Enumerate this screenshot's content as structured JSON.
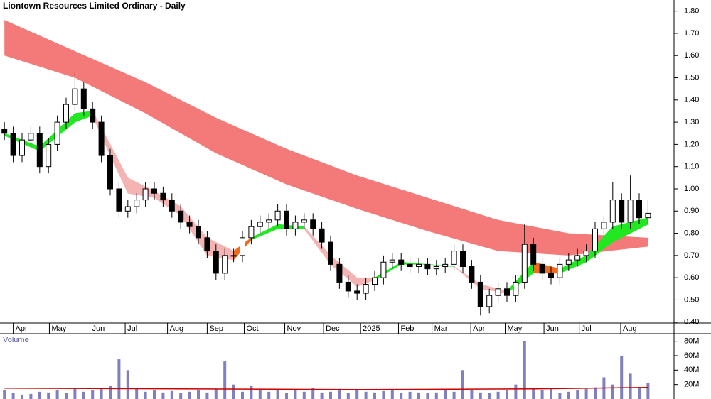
{
  "chart_data": {
    "type": "candlestick",
    "title": "Liontown Resources Limited Ordinary - Daily",
    "x": [
      0,
      1,
      2,
      3,
      4,
      5,
      6,
      7,
      8,
      9,
      10,
      11,
      12,
      13,
      14,
      15,
      16,
      17,
      18,
      19,
      20,
      21,
      22,
      23,
      24,
      25,
      26,
      27,
      28,
      29,
      30,
      31,
      32,
      33,
      34,
      35,
      36,
      37,
      38,
      39,
      40,
      41,
      42,
      43,
      44,
      45,
      46,
      47,
      48,
      49,
      50,
      51,
      52,
      53,
      54,
      55,
      56,
      57,
      58,
      59,
      60,
      61,
      62,
      63,
      64,
      65,
      66,
      67,
      68,
      69,
      70,
      71,
      72,
      73
    ],
    "open": [
      1.27,
      1.25,
      1.15,
      1.22,
      1.25,
      1.1,
      1.2,
      1.3,
      1.38,
      1.45,
      1.36,
      1.3,
      1.15,
      1.0,
      0.9,
      0.92,
      0.95,
      1.0,
      0.98,
      0.95,
      0.9,
      0.85,
      0.83,
      0.78,
      0.72,
      0.62,
      0.7,
      0.7,
      0.78,
      0.83,
      0.85,
      0.86,
      0.9,
      0.82,
      0.85,
      0.86,
      0.82,
      0.76,
      0.66,
      0.58,
      0.54,
      0.53,
      0.57,
      0.6,
      0.67,
      0.68,
      0.66,
      0.65,
      0.66,
      0.64,
      0.65,
      0.66,
      0.72,
      0.65,
      0.58,
      0.47,
      0.52,
      0.55,
      0.52,
      0.58,
      0.75,
      0.66,
      0.62,
      0.6,
      0.66,
      0.68,
      0.7,
      0.72,
      0.82,
      0.85,
      0.95,
      0.85,
      0.95,
      0.87
    ],
    "high": [
      1.3,
      1.28,
      1.25,
      1.28,
      1.28,
      1.23,
      1.33,
      1.41,
      1.53,
      1.48,
      1.39,
      1.33,
      1.18,
      1.03,
      0.95,
      0.98,
      1.03,
      1.03,
      1.01,
      0.98,
      0.93,
      0.88,
      0.86,
      0.81,
      0.75,
      0.73,
      0.73,
      0.81,
      0.86,
      0.88,
      0.89,
      0.93,
      0.93,
      0.88,
      0.89,
      0.89,
      0.85,
      0.79,
      0.69,
      0.61,
      0.57,
      0.6,
      0.63,
      0.7,
      0.71,
      0.71,
      0.69,
      0.69,
      0.69,
      0.68,
      0.69,
      0.75,
      0.75,
      0.68,
      0.61,
      0.55,
      0.58,
      0.58,
      0.61,
      0.84,
      0.78,
      0.69,
      0.65,
      0.69,
      0.71,
      0.73,
      0.75,
      0.85,
      0.88,
      1.03,
      0.98,
      1.06,
      0.98,
      0.95
    ],
    "low": [
      1.22,
      1.12,
      1.12,
      1.19,
      1.07,
      1.07,
      1.17,
      1.27,
      1.35,
      1.33,
      1.27,
      1.12,
      0.97,
      0.87,
      0.87,
      0.89,
      0.92,
      0.95,
      0.92,
      0.87,
      0.82,
      0.8,
      0.75,
      0.69,
      0.59,
      0.59,
      0.67,
      0.67,
      0.75,
      0.8,
      0.82,
      0.83,
      0.79,
      0.79,
      0.82,
      0.79,
      0.73,
      0.63,
      0.55,
      0.51,
      0.5,
      0.5,
      0.54,
      0.57,
      0.64,
      0.63,
      0.62,
      0.62,
      0.61,
      0.61,
      0.62,
      0.63,
      0.62,
      0.55,
      0.43,
      0.44,
      0.49,
      0.49,
      0.49,
      0.55,
      0.63,
      0.59,
      0.57,
      0.57,
      0.63,
      0.65,
      0.67,
      0.69,
      0.79,
      0.82,
      0.82,
      0.82,
      0.84,
      0.84
    ],
    "close": [
      1.25,
      1.15,
      1.22,
      1.25,
      1.1,
      1.2,
      1.3,
      1.38,
      1.45,
      1.36,
      1.3,
      1.15,
      1.0,
      0.9,
      0.92,
      0.95,
      1.0,
      0.98,
      0.95,
      0.9,
      0.85,
      0.83,
      0.78,
      0.72,
      0.62,
      0.7,
      0.7,
      0.78,
      0.83,
      0.85,
      0.86,
      0.9,
      0.82,
      0.85,
      0.86,
      0.82,
      0.76,
      0.66,
      0.58,
      0.54,
      0.53,
      0.57,
      0.6,
      0.67,
      0.68,
      0.66,
      0.65,
      0.66,
      0.64,
      0.65,
      0.66,
      0.72,
      0.65,
      0.58,
      0.47,
      0.52,
      0.55,
      0.52,
      0.58,
      0.75,
      0.66,
      0.62,
      0.6,
      0.66,
      0.68,
      0.7,
      0.72,
      0.82,
      0.85,
      0.95,
      0.85,
      0.95,
      0.87,
      0.89
    ],
    "up_color": "#ffffff",
    "down_color": "#000000",
    "xlim": [
      -0.5,
      74.5
    ],
    "ylim": [
      0.38,
      1.85
    ],
    "xticks": [
      {
        "value": 1.0,
        "label": "Apr"
      },
      {
        "value": 5.1,
        "label": "May"
      },
      {
        "value": 9.7,
        "label": "Jun"
      },
      {
        "value": 13.7,
        "label": "Jul"
      },
      {
        "value": 18.5,
        "label": "Aug"
      },
      {
        "value": 23.0,
        "label": "Sep"
      },
      {
        "value": 27.2,
        "label": "Oct"
      },
      {
        "value": 31.8,
        "label": "Nov"
      },
      {
        "value": 36.2,
        "label": "Dec"
      },
      {
        "value": 40.4,
        "label": "2025"
      },
      {
        "value": 44.7,
        "label": "Feb"
      },
      {
        "value": 48.5,
        "label": "Mar"
      },
      {
        "value": 52.9,
        "label": "Apr"
      },
      {
        "value": 56.8,
        "label": "May"
      },
      {
        "value": 61.2,
        "label": "Jun"
      },
      {
        "value": 65.2,
        "label": "Jul"
      },
      {
        "value": 69.9,
        "label": "Aug"
      }
    ],
    "yticks": [
      {
        "value": 0.4,
        "label": "0.40"
      },
      {
        "value": 0.5,
        "label": "0.50"
      },
      {
        "value": 0.6,
        "label": "0.60"
      },
      {
        "value": 0.7,
        "label": "0.70"
      },
      {
        "value": 0.8,
        "label": "0.80"
      },
      {
        "value": 0.9,
        "label": "0.90"
      },
      {
        "value": 1.0,
        "label": "1.00"
      },
      {
        "value": 1.1,
        "label": "1.10"
      },
      {
        "value": 1.2,
        "label": "1.20"
      },
      {
        "value": 1.3,
        "label": "1.30"
      },
      {
        "value": 1.4,
        "label": "1.40"
      },
      {
        "value": 1.5,
        "label": "1.50"
      },
      {
        "value": 1.6,
        "label": "1.60"
      },
      {
        "value": 1.7,
        "label": "1.70"
      },
      {
        "value": 1.8,
        "label": "1.80"
      }
    ],
    "long_band": {
      "color": "#f47a7a",
      "x": [
        0,
        8,
        16,
        24,
        32,
        40,
        48,
        56,
        64,
        73
      ],
      "upper": [
        1.76,
        1.62,
        1.48,
        1.32,
        1.18,
        1.06,
        0.96,
        0.86,
        0.8,
        0.78
      ],
      "lower": [
        1.6,
        1.5,
        1.34,
        1.16,
        1.02,
        0.91,
        0.81,
        0.72,
        0.7,
        0.74
      ]
    },
    "short_band": {
      "x": [
        0,
        4,
        8,
        10,
        12,
        14,
        17,
        20,
        23,
        26,
        28,
        31,
        34,
        37,
        40,
        42,
        45,
        48,
        51,
        54,
        57,
        60,
        63,
        66,
        69,
        73
      ],
      "upper": [
        1.25,
        1.19,
        1.34,
        1.35,
        1.2,
        1.05,
        0.99,
        0.92,
        0.78,
        0.72,
        0.78,
        0.84,
        0.83,
        0.7,
        0.6,
        0.6,
        0.67,
        0.66,
        0.65,
        0.57,
        0.54,
        0.67,
        0.64,
        0.7,
        0.83,
        0.87
      ],
      "lower": [
        1.24,
        1.17,
        1.3,
        1.33,
        1.15,
        0.98,
        0.96,
        0.88,
        0.7,
        0.68,
        0.77,
        0.82,
        0.82,
        0.66,
        0.56,
        0.59,
        0.66,
        0.66,
        0.65,
        0.55,
        0.53,
        0.62,
        0.62,
        0.67,
        0.76,
        0.84
      ],
      "colors": [
        "#22e822",
        "#22e822",
        "#22e822",
        "#f4b4b4",
        "#f4b4b4",
        "#f4b4b4",
        "#f4b4b4",
        "#f4b4b4",
        "#f4b4b4",
        "#f26a1b",
        "#22e822",
        "#22e822",
        "#f4b4b4",
        "#f4b4b4",
        "#f4b4b4",
        "#22e822",
        "#22e822",
        "#22e822",
        "#f4b4b4",
        "#f4b4b4",
        "#22e822",
        "#f26a1b",
        "#22e822",
        "#22e822",
        "#22e822"
      ]
    },
    "volume": {
      "label": "Volume",
      "color": "#8080c0",
      "values": [
        12,
        8,
        6,
        7,
        10,
        9,
        12,
        8,
        14,
        10,
        12,
        15,
        18,
        55,
        40,
        15,
        10,
        12,
        9,
        11,
        8,
        10,
        12,
        9,
        14,
        52,
        20,
        10,
        18,
        12,
        10,
        14,
        8,
        12,
        10,
        15,
        9,
        10,
        14,
        8,
        12,
        10,
        9,
        11,
        12,
        8,
        10,
        9,
        8,
        9,
        12,
        10,
        40,
        12,
        9,
        8,
        10,
        12,
        20,
        80,
        15,
        12,
        14,
        8,
        10,
        12,
        14,
        16,
        30,
        20,
        60,
        35,
        15,
        22
      ],
      "ylim": [
        0,
        88.5
      ],
      "yticks": [
        {
          "value": 20,
          "label": "20M"
        },
        {
          "value": 40,
          "label": "40M"
        },
        {
          "value": 60,
          "label": "60M"
        },
        {
          "value": 80,
          "label": "80M"
        }
      ],
      "ma_color": "#cc0000",
      "ma_x": [
        0,
        20,
        40,
        60,
        73
      ],
      "ma": [
        15,
        14,
        13,
        14,
        16
      ]
    }
  }
}
